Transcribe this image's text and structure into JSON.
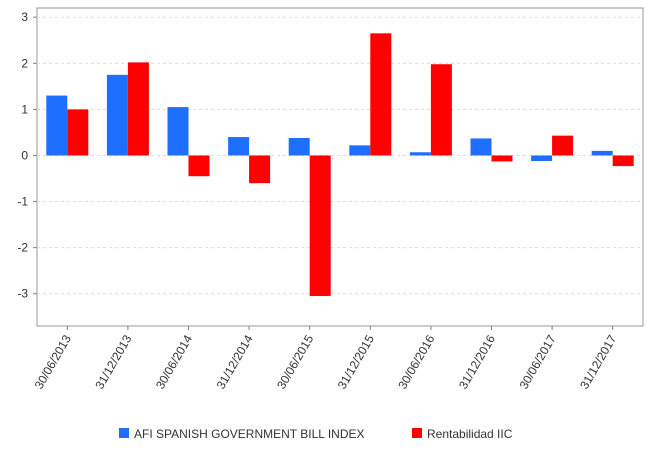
{
  "chart_data": {
    "type": "bar",
    "categories": [
      "30/06/2013",
      "31/12/2013",
      "30/06/2014",
      "31/12/2014",
      "30/06/2015",
      "31/12/2015",
      "30/06/2016",
      "31/12/2016",
      "30/06/2017",
      "31/12/2017"
    ],
    "series": [
      {
        "name": "AFI SPANISH GOVERNMENT BILL INDEX",
        "color": "#1f6fff",
        "values": [
          1.3,
          1.75,
          1.05,
          0.4,
          0.38,
          0.22,
          0.07,
          0.37,
          -0.12,
          0.1
        ]
      },
      {
        "name": "Rentabilidad IIC",
        "color": "#ff0000",
        "values": [
          1.0,
          2.02,
          -0.45,
          -0.6,
          -3.05,
          2.65,
          1.98,
          -0.13,
          0.43,
          -0.23
        ]
      }
    ],
    "ylim": [
      -3.7,
      3.2
    ],
    "yticks": [
      3,
      2,
      1,
      0,
      -1,
      -2,
      -3
    ],
    "grid": true,
    "legend_position": "bottom",
    "title": "",
    "xlabel": "",
    "ylabel": ""
  }
}
